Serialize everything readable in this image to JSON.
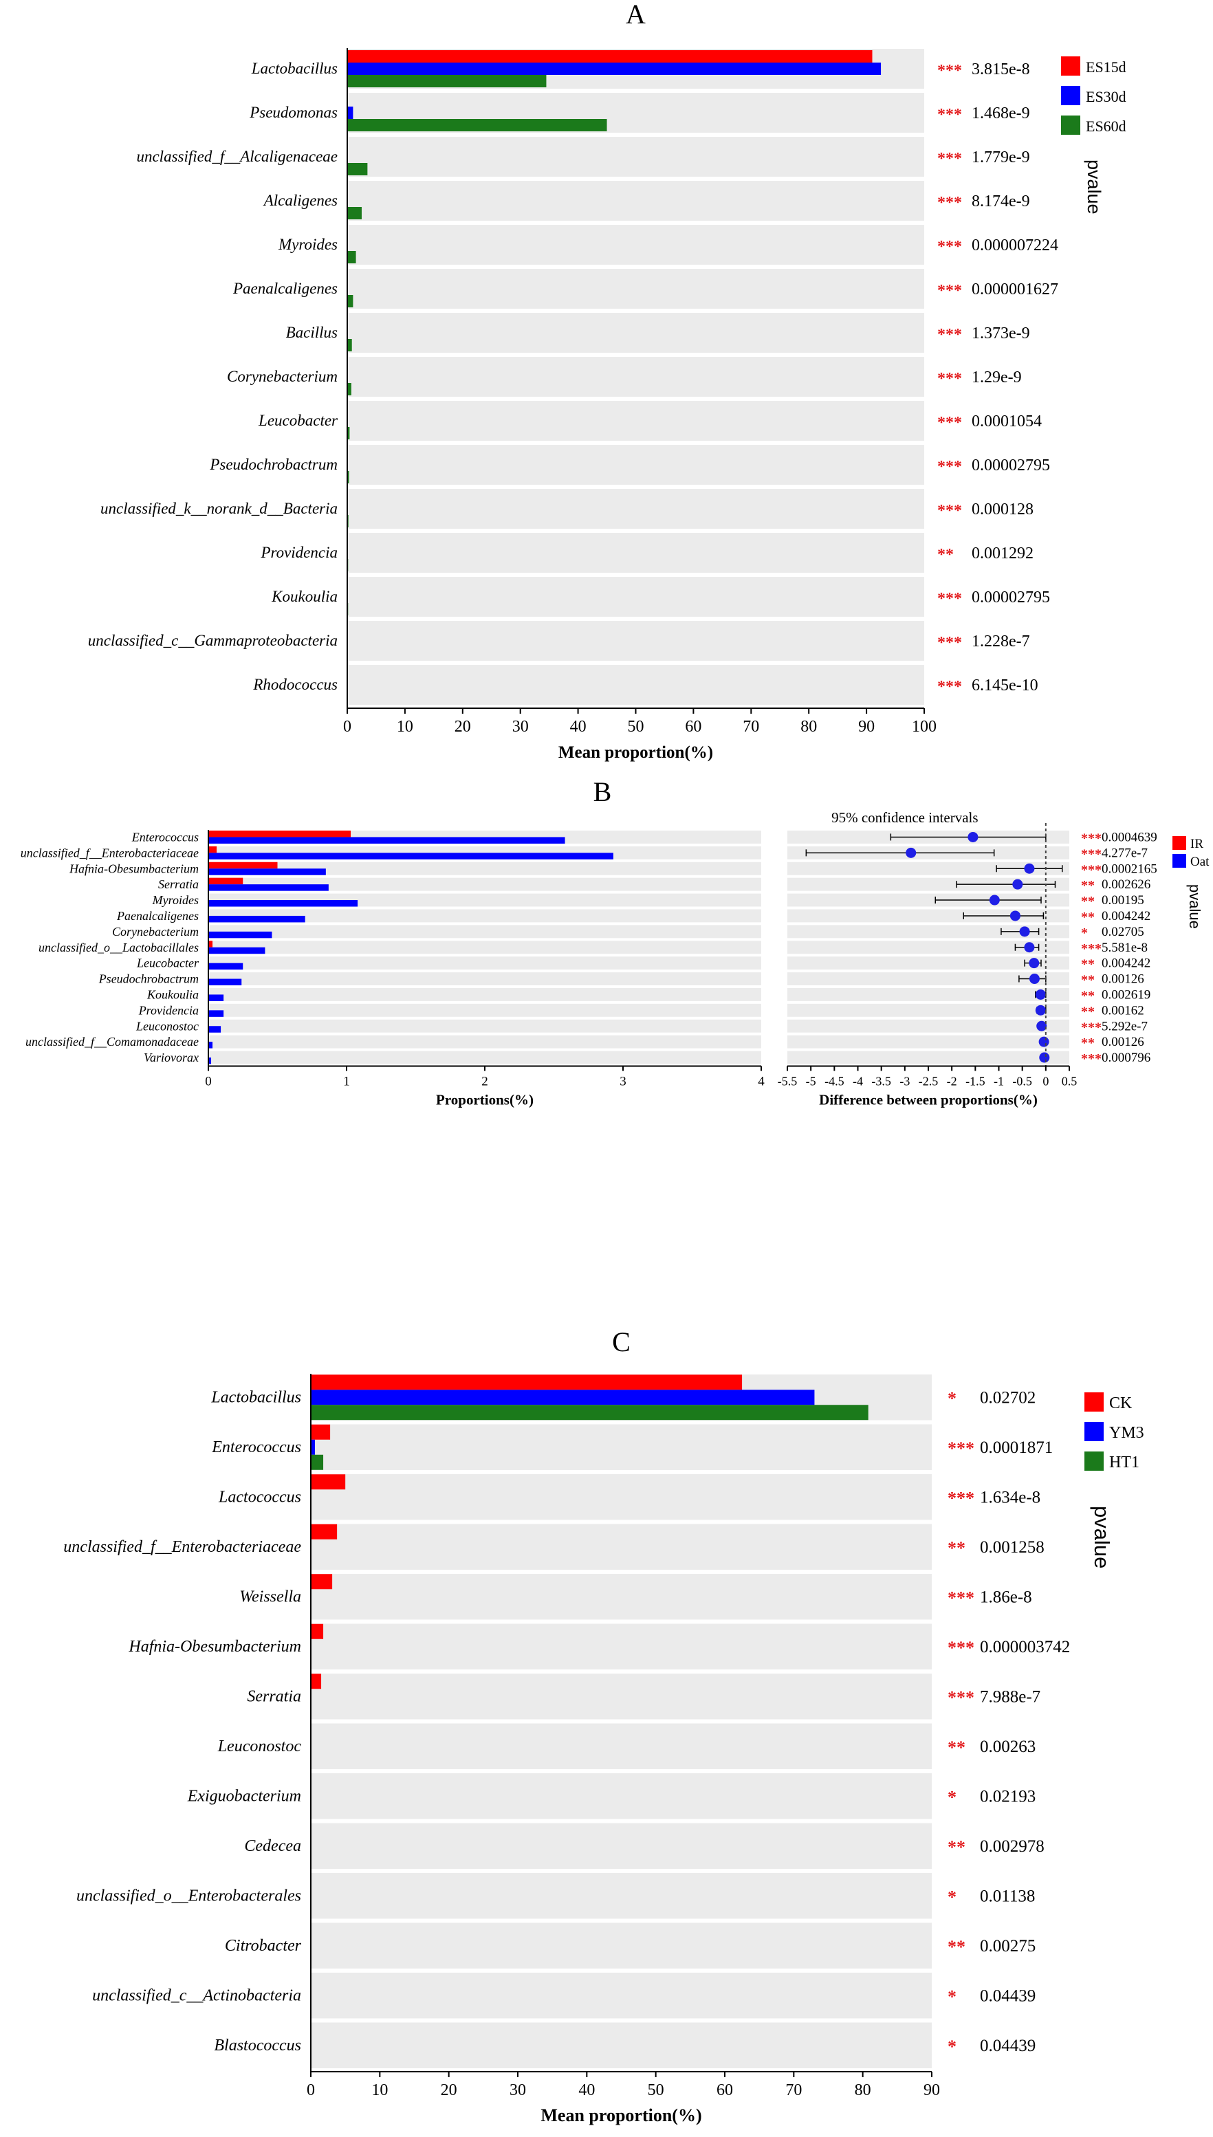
{
  "colors": {
    "band": "#ebebeb",
    "star": "#e31a1c",
    "red": "#ff0000",
    "blue": "#0000ff",
    "green": "#1b7a1b",
    "ci_point": "#1f1fe6"
  },
  "pvalue_label": "pvalue",
  "chart_data": [
    {
      "type": "bar",
      "panel": "A",
      "title": "A",
      "xlabel": "Mean proportion(%)",
      "xlim": [
        0,
        100
      ],
      "xticks": [
        0,
        10,
        20,
        30,
        40,
        50,
        60,
        70,
        80,
        90,
        100
      ],
      "series": [
        {
          "name": "ES15d",
          "color": "#ff0000",
          "values": [
            91,
            0,
            0,
            0,
            0,
            0,
            0,
            0,
            0,
            0,
            0,
            0,
            0,
            0,
            0
          ]
        },
        {
          "name": "ES30d",
          "color": "#0000ff",
          "values": [
            92.5,
            1,
            0,
            0,
            0,
            0,
            0,
            0,
            0,
            0,
            0,
            0,
            0,
            0,
            0
          ]
        },
        {
          "name": "ES60d",
          "color": "#1b7a1b",
          "values": [
            34.5,
            45,
            3.5,
            2.5,
            1.5,
            1,
            0.8,
            0.7,
            0.4,
            0.3,
            0.2,
            0.15,
            0.15,
            0.1,
            0.1
          ]
        }
      ],
      "categories": [
        "Lactobacillus",
        "Pseudomonas",
        "unclassified_f__Alcaligenaceae",
        "Alcaligenes",
        "Myroides",
        "Paenalcaligenes",
        "Bacillus",
        "Corynebacterium",
        "Leucobacter",
        "Pseudochrobactrum",
        "unclassified_k__norank_d__Bacteria",
        "Providencia",
        "Koukoulia",
        "unclassified_c__Gammaproteobacteria",
        "Rhodococcus"
      ],
      "stars": [
        "***",
        "***",
        "***",
        "***",
        "***",
        "***",
        "***",
        "***",
        "***",
        "***",
        "***",
        "**",
        "***",
        "***",
        "***"
      ],
      "pvalues": [
        "3.815e-8",
        "1.468e-9",
        "1.779e-9",
        "8.174e-9",
        "0.000007224",
        "0.000001627",
        "1.373e-9",
        "1.29e-9",
        "0.0001054",
        "0.00002795",
        "0.000128",
        "0.001292",
        "0.00002795",
        "1.228e-7",
        "6.145e-10"
      ],
      "legend": [
        "ES15d",
        "ES30d",
        "ES60d"
      ],
      "legend_position": "right"
    },
    {
      "type": "bar",
      "panel": "B",
      "title": "B",
      "xlabel": "Proportions(%)",
      "xlim": [
        0,
        4
      ],
      "xticks": [
        0,
        1,
        2,
        3,
        4
      ],
      "series": [
        {
          "name": "IR",
          "color": "#ff0000",
          "values": [
            1.03,
            0.06,
            0.5,
            0.25,
            0,
            0,
            0,
            0.03,
            0,
            0,
            0,
            0,
            0,
            0,
            0
          ]
        },
        {
          "name": "Oat",
          "color": "#0000ff",
          "values": [
            2.58,
            2.93,
            0.85,
            0.87,
            1.08,
            0.7,
            0.46,
            0.41,
            0.25,
            0.24,
            0.11,
            0.11,
            0.09,
            0.03,
            0.02
          ]
        }
      ],
      "categories": [
        "Enterococcus",
        "unclassified_f__Enterobacteriaceae",
        "Hafnia-Obesumbacterium",
        "Serratia",
        "Myroides",
        "Paenalcaligenes",
        "Corynebacterium",
        "unclassified_o__Lactobacillales",
        "Leucobacter",
        "Pseudochrobactrum",
        "Koukoulia",
        "Providencia",
        "Leuconostoc",
        "unclassified_f__Comamonadaceae",
        "Variovorax"
      ],
      "ci": {
        "title": "95% confidence intervals",
        "xlabel": "Difference between proportions(%)",
        "xlim": [
          -5.5,
          0.5
        ],
        "xticks": [
          "-5.5",
          "-5",
          "-4.5",
          "-4",
          "-3.5",
          "-3",
          "-2.5",
          "-2",
          "-1.5",
          "-1",
          "-0.5",
          "0",
          "0.5"
        ],
        "diff": [
          -1.55,
          -2.87,
          -0.35,
          -0.6,
          -1.09,
          -0.65,
          -0.45,
          -0.35,
          -0.25,
          -0.24,
          -0.11,
          -0.11,
          -0.09,
          -0.04,
          -0.03
        ],
        "lower": [
          -3.3,
          -5.1,
          -1.05,
          -1.9,
          -2.35,
          -1.75,
          -0.95,
          -0.65,
          -0.45,
          -0.57,
          -0.22,
          -0.19,
          -0.16,
          -0.09,
          -0.07
        ],
        "upper": [
          0,
          -1.1,
          0.35,
          0.2,
          -0.1,
          -0.05,
          -0.15,
          -0.15,
          -0.1,
          0,
          0,
          0,
          0,
          0,
          0
        ]
      },
      "stars": [
        "***",
        "***",
        "***",
        "**",
        "**",
        "**",
        "*",
        "***",
        "**",
        "**",
        "**",
        "**",
        "***",
        "**",
        "***"
      ],
      "pvalues": [
        "0.0004639",
        "4.277e-7",
        "0.0002165",
        "0.002626",
        "0.00195",
        "0.004242",
        "0.02705",
        "5.581e-8",
        "0.004242",
        "0.00126",
        "0.002619",
        "0.00162",
        "5.292e-7",
        "0.00126",
        "0.000796"
      ],
      "legend": [
        "IR",
        "Oat"
      ],
      "legend_position": "right"
    },
    {
      "type": "bar",
      "panel": "C",
      "title": "C",
      "xlabel": "Mean proportion(%)",
      "xlim": [
        0,
        90
      ],
      "xticks": [
        0,
        10,
        20,
        30,
        40,
        50,
        60,
        70,
        80,
        90
      ],
      "series": [
        {
          "name": "CK",
          "color": "#ff0000",
          "values": [
            62.5,
            2.8,
            5,
            3.8,
            3.1,
            1.8,
            1.5,
            0,
            0,
            0,
            0,
            0,
            0,
            0
          ]
        },
        {
          "name": "YM3",
          "color": "#0000ff",
          "values": [
            73,
            0.6,
            0,
            0,
            0,
            0,
            0,
            0,
            0,
            0,
            0,
            0,
            0,
            0
          ]
        },
        {
          "name": "HT1",
          "color": "#1b7a1b",
          "values": [
            80.8,
            1.8,
            0,
            0,
            0,
            0,
            0,
            0,
            0,
            0,
            0,
            0,
            0,
            0
          ]
        }
      ],
      "categories": [
        "Lactobacillus",
        "Enterococcus",
        "Lactococcus",
        "unclassified_f__Enterobacteriaceae",
        "Weissella",
        "Hafnia-Obesumbacterium",
        "Serratia",
        "Leuconostoc",
        "Exiguobacterium",
        "Cedecea",
        "unclassified_o__Enterobacterales",
        "Citrobacter",
        "unclassified_c__Actinobacteria",
        "Blastococcus"
      ],
      "stars": [
        "*",
        "***",
        "***",
        "**",
        "***",
        "***",
        "***",
        "**",
        "*",
        "**",
        "*",
        "**",
        "*",
        "*"
      ],
      "pvalues": [
        "0.02702",
        "0.0001871",
        "1.634e-8",
        "0.001258",
        "1.86e-8",
        "0.000003742",
        "7.988e-7",
        "0.00263",
        "0.02193",
        "0.002978",
        "0.01138",
        "0.00275",
        "0.04439",
        "0.04439"
      ],
      "legend": [
        "CK",
        "YM3",
        "HT1"
      ],
      "legend_position": "right"
    }
  ]
}
